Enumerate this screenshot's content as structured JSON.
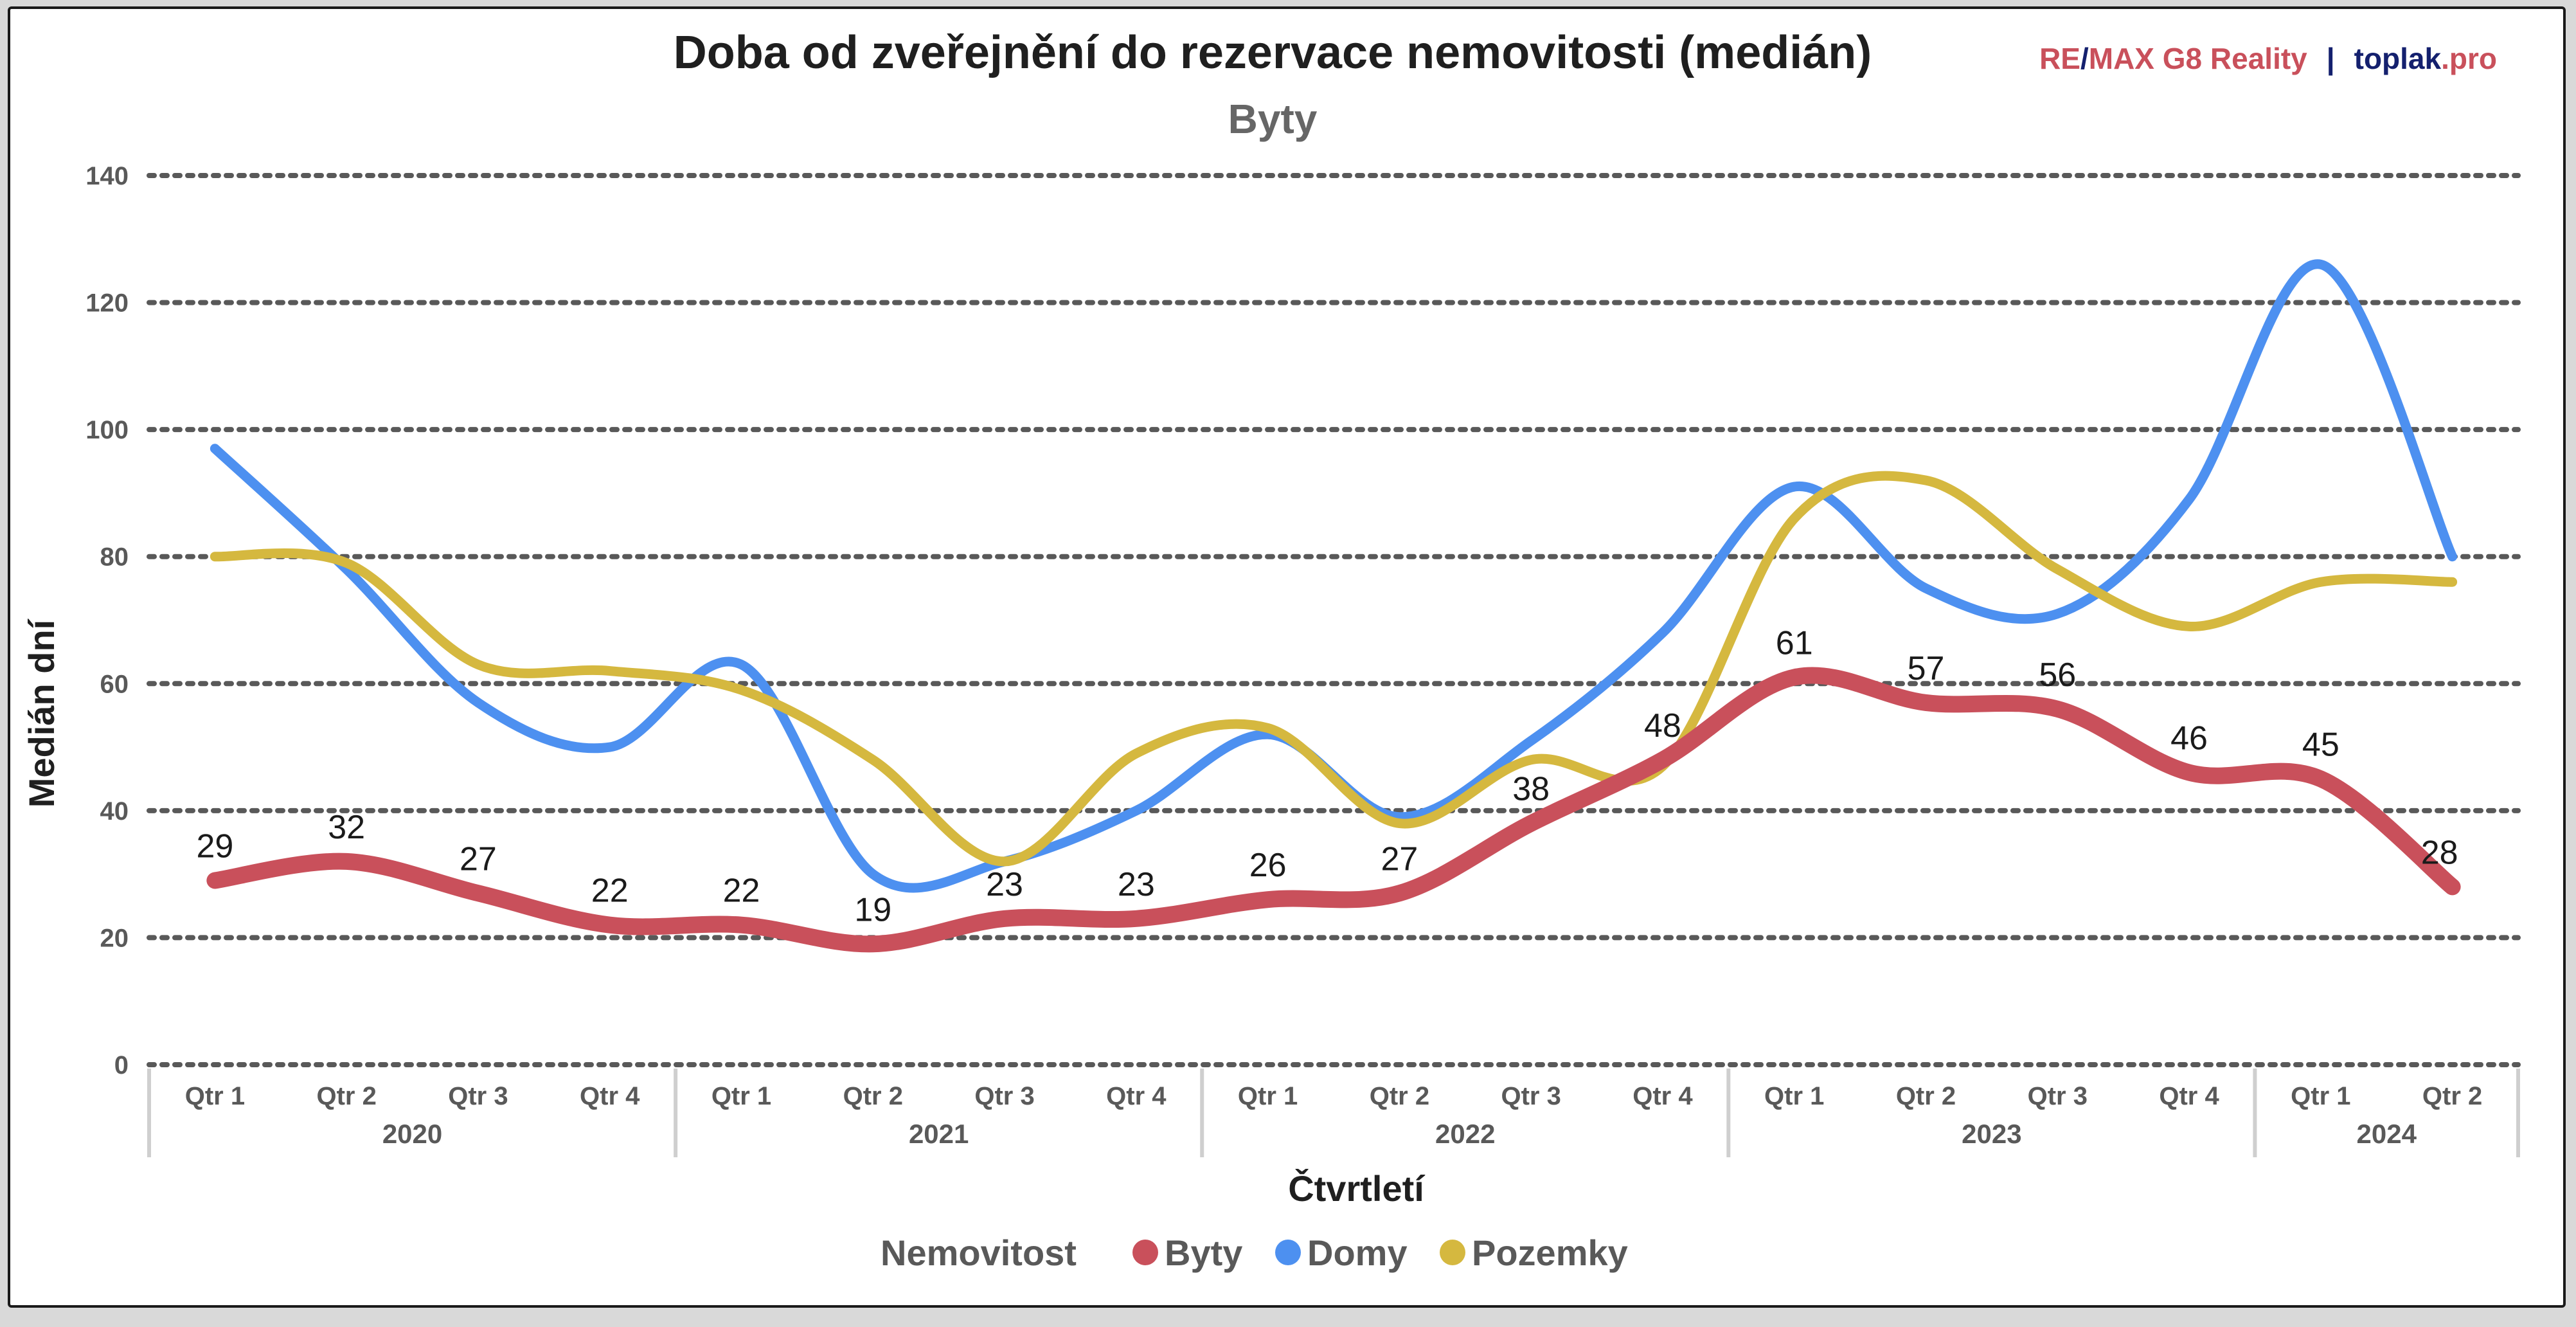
{
  "chart_data": {
    "type": "line",
    "title": "Doba od zveřejnění do rezervace nemovitosti (medián)",
    "subtitle": "Byty",
    "brand": {
      "part1": "RE",
      "slash": "/",
      "part2": "MAX G8 Reality",
      "sep": "|",
      "part3": "toplak",
      "part4": ".pro",
      "color_red": "#c9505b",
      "color_navy": "#14206e"
    },
    "xlabel": "Čtvrtletí",
    "ylabel": "Medián dní",
    "ylim": [
      0,
      140
    ],
    "yticks": [
      0,
      20,
      40,
      60,
      80,
      100,
      120,
      140
    ],
    "grid": true,
    "categories": [
      "Qtr 1",
      "Qtr 2",
      "Qtr 3",
      "Qtr 4",
      "Qtr 1",
      "Qtr 2",
      "Qtr 3",
      "Qtr 4",
      "Qtr 1",
      "Qtr 2",
      "Qtr 3",
      "Qtr 4",
      "Qtr 1",
      "Qtr 2",
      "Qtr 3",
      "Qtr 4",
      "Qtr 1",
      "Qtr 2"
    ],
    "year_groups": [
      {
        "label": "2020",
        "count": 4
      },
      {
        "label": "2021",
        "count": 4
      },
      {
        "label": "2022",
        "count": 4
      },
      {
        "label": "2023",
        "count": 4
      },
      {
        "label": "2024",
        "count": 2
      }
    ],
    "legend": {
      "title": "Nemovitost",
      "position": "bottom"
    },
    "series": [
      {
        "name": "Byty",
        "color": "#c9505b",
        "data_labels": true,
        "values": [
          29,
          32,
          27,
          22,
          22,
          19,
          23,
          23,
          26,
          27,
          38,
          48,
          61,
          57,
          56,
          46,
          45,
          28
        ]
      },
      {
        "name": "Domy",
        "color": "#4d90f0",
        "data_labels": false,
        "values": [
          97,
          78,
          57,
          50,
          63,
          30,
          32,
          40,
          52,
          39,
          51,
          68,
          91,
          75,
          71,
          89,
          126,
          80
        ]
      },
      {
        "name": "Pozemky",
        "color": "#d5b83f",
        "data_labels": false,
        "values": [
          80,
          79,
          63,
          62,
          59,
          48,
          32,
          49,
          53,
          38,
          48,
          47,
          86,
          92,
          78,
          69,
          76,
          76
        ]
      }
    ]
  }
}
